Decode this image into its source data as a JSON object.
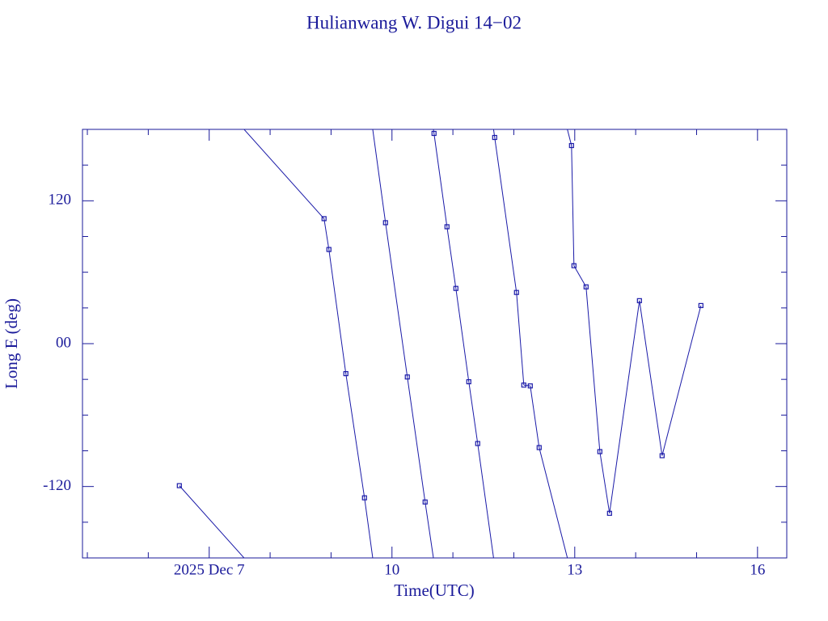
{
  "chart_data": {
    "type": "line",
    "title": "Hulianwang W. Digui 14−02",
    "x_label": "Time(UTC)",
    "y_label": "Long E (deg)",
    "color": "#1a1aa8",
    "xlim": [
      4.92,
      16.48
    ],
    "ylim": [
      -180,
      180
    ],
    "xticks": [
      {
        "value": 7,
        "label": "2025 Dec  7"
      },
      10,
      13,
      16
    ],
    "yticks": [
      -120,
      {
        "value": 0,
        "label": "00"
      },
      120
    ],
    "xminorticks": [
      5,
      6,
      8,
      9,
      11,
      12,
      14,
      15
    ],
    "yminorticks": [
      -150,
      -90,
      -60,
      -30,
      30,
      60,
      90,
      150
    ],
    "wrap_longitude": true,
    "x": [
      6.51,
      8.885,
      8.965,
      9.243,
      9.549,
      9.894,
      10.252,
      10.544,
      10.69,
      10.903,
      11.049,
      11.261,
      11.407,
      11.686,
      12.044,
      12.164,
      12.27,
      12.416,
      12.947,
      12.987,
      13.186,
      13.412,
      13.571,
      14.062,
      14.434,
      15.071
    ],
    "values": [
      -119.3,
      105.0,
      79.1,
      -25.2,
      -129.5,
      101.6,
      -28.0,
      -133.0,
      176.6,
      98.2,
      46.4,
      -32.0,
      -83.9,
      173.2,
      43.0,
      -34.8,
      -35.5,
      -87.3,
      166.4,
      65.5,
      47.7,
      -90.7,
      -142.5,
      36.1,
      -94.1,
      32.0
    ]
  }
}
